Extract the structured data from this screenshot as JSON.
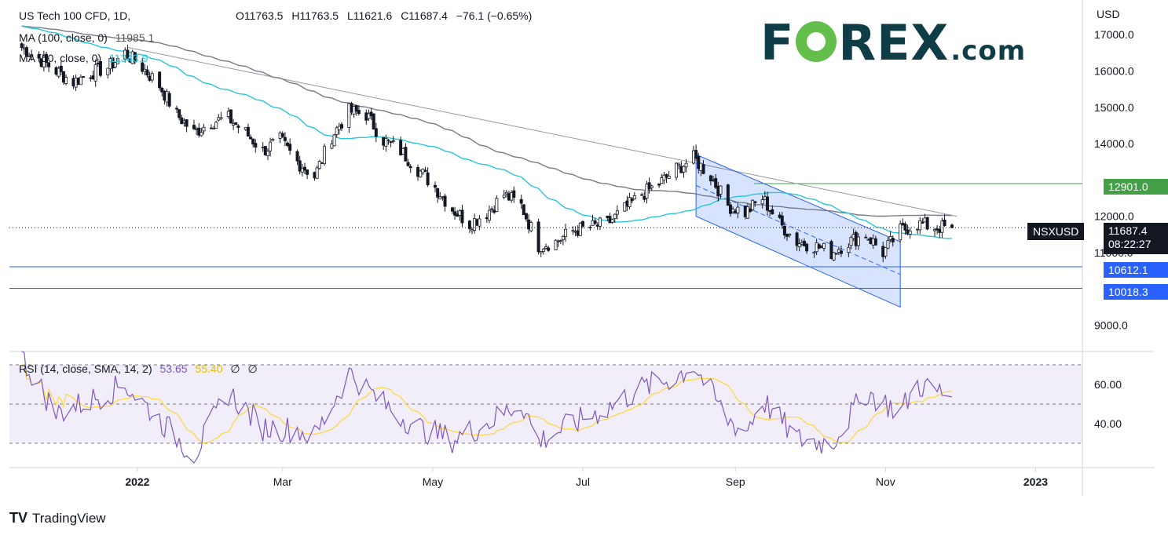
{
  "header": {
    "title": "US Tech 100 CFD, 1D,",
    "ohlc": {
      "o": "O11763.5",
      "h": "H11763.5",
      "l": "L11621.6",
      "c": "C11687.4",
      "chg": "−76.1 (−0.65%)"
    },
    "ma100": {
      "label": "MA (100, close, 0)",
      "value": "11985.1"
    },
    "ma50": {
      "label": "MA (50, close, 0)",
      "value": "11343.9"
    },
    "rsi": {
      "label": "RSI (14, close, SMA, 14, 2)",
      "value": "53.65",
      "sma": "55.40",
      "extra1": "∅",
      "extra2": "∅"
    }
  },
  "logo": {
    "brand": "F",
    "brand_rest": "REX",
    "suffix": ".com"
  },
  "axis": {
    "unit": "USD",
    "price_ticks": [
      "17000.0",
      "16000.0",
      "15000.0",
      "14000.0",
      "12000.0",
      "11000.0",
      "9000.0"
    ],
    "rsi_ticks": [
      "60.00",
      "40.00"
    ],
    "date_ticks": [
      "2022",
      "Mar",
      "May",
      "Jul",
      "Sep",
      "Nov",
      "2023"
    ]
  },
  "labels": {
    "resistance": "12901.0",
    "support1": "10612.1",
    "support2": "10018.3",
    "symbol": "NSXUSD",
    "last_price": "11687.4",
    "countdown": "08:22:27"
  },
  "footer": {
    "brand": "TradingView",
    "logo": "TV"
  },
  "colors": {
    "ma50": "#26c6da",
    "ma100": "#787b86",
    "rsi": "#7e57c2",
    "rsi_sma": "#fdd835",
    "support": "#2962ff",
    "resistance": "#43a047",
    "channel": "#bbdefb",
    "candle": "#131722"
  },
  "chart_data": {
    "type": "candlestick",
    "symbol": "US Tech 100 CFD",
    "timeframe": "1D",
    "ylim": [
      8500,
      17500
    ],
    "horizontal_levels": [
      12901.0,
      10612.1,
      10018.3
    ],
    "close_anchors": [
      [
        "2021-11-15",
        16650
      ],
      [
        "2021-11-22",
        16350
      ],
      [
        "2021-11-29",
        16000
      ],
      [
        "2021-12-06",
        15700
      ],
      [
        "2021-12-13",
        15950
      ],
      [
        "2021-12-20",
        16100
      ],
      [
        "2021-12-27",
        16500
      ],
      [
        "2022-01-03",
        16100
      ],
      [
        "2022-01-10",
        15600
      ],
      [
        "2022-01-17",
        14800
      ],
      [
        "2022-01-24",
        14300
      ],
      [
        "2022-01-31",
        14600
      ],
      [
        "2022-02-07",
        14700
      ],
      [
        "2022-02-14",
        14300
      ],
      [
        "2022-02-21",
        13800
      ],
      [
        "2022-02-28",
        14100
      ],
      [
        "2022-03-07",
        13500
      ],
      [
        "2022-03-14",
        13100
      ],
      [
        "2022-03-21",
        14200
      ],
      [
        "2022-03-28",
        14900
      ],
      [
        "2022-04-04",
        14800
      ],
      [
        "2022-04-11",
        14100
      ],
      [
        "2022-04-18",
        13800
      ],
      [
        "2022-04-25",
        13300
      ],
      [
        "2022-05-02",
        12800
      ],
      [
        "2022-05-09",
        12200
      ],
      [
        "2022-05-16",
        11800
      ],
      [
        "2022-05-23",
        12100
      ],
      [
        "2022-05-30",
        12600
      ],
      [
        "2022-06-06",
        12300
      ],
      [
        "2022-06-13",
        11200
      ],
      [
        "2022-06-20",
        11300
      ],
      [
        "2022-06-27",
        11600
      ],
      [
        "2022-07-04",
        11700
      ],
      [
        "2022-07-11",
        11800
      ],
      [
        "2022-07-18",
        12200
      ],
      [
        "2022-07-25",
        12600
      ],
      [
        "2022-08-01",
        12900
      ],
      [
        "2022-08-08",
        13300
      ],
      [
        "2022-08-15",
        13600
      ],
      [
        "2022-08-22",
        13100
      ],
      [
        "2022-08-29",
        12300
      ],
      [
        "2022-09-05",
        12100
      ],
      [
        "2022-09-12",
        12500
      ],
      [
        "2022-09-19",
        11800
      ],
      [
        "2022-09-26",
        11300
      ],
      [
        "2022-10-03",
        11200
      ],
      [
        "2022-10-10",
        11000
      ],
      [
        "2022-10-17",
        11300
      ],
      [
        "2022-10-24",
        11500
      ],
      [
        "2022-10-31",
        11000
      ],
      [
        "2022-11-07",
        11600
      ],
      [
        "2022-11-14",
        11800
      ],
      [
        "2022-11-21",
        11700
      ],
      [
        "2022-11-28",
        11687
      ]
    ],
    "rsi_anchors": [
      [
        "2021-11-15",
        74
      ],
      [
        "2021-11-29",
        45
      ],
      [
        "2021-12-13",
        52
      ],
      [
        "2021-12-27",
        60
      ],
      [
        "2022-01-10",
        42
      ],
      [
        "2022-01-24",
        24
      ],
      [
        "2022-02-07",
        56
      ],
      [
        "2022-02-21",
        38
      ],
      [
        "2022-03-07",
        37
      ],
      [
        "2022-03-14",
        33
      ],
      [
        "2022-03-28",
        66
      ],
      [
        "2022-04-11",
        50
      ],
      [
        "2022-04-25",
        38
      ],
      [
        "2022-05-09",
        32
      ],
      [
        "2022-05-23",
        40
      ],
      [
        "2022-06-06",
        51
      ],
      [
        "2022-06-13",
        31
      ],
      [
        "2022-06-27",
        40
      ],
      [
        "2022-07-11",
        48
      ],
      [
        "2022-07-25",
        58
      ],
      [
        "2022-08-08",
        64
      ],
      [
        "2022-08-15",
        70
      ],
      [
        "2022-08-29",
        42
      ],
      [
        "2022-09-05",
        36
      ],
      [
        "2022-09-12",
        52
      ],
      [
        "2022-09-26",
        32
      ],
      [
        "2022-10-10",
        30
      ],
      [
        "2022-10-24",
        56
      ],
      [
        "2022-11-07",
        46
      ],
      [
        "2022-11-14",
        60
      ],
      [
        "2022-11-28",
        53.65
      ]
    ]
  }
}
